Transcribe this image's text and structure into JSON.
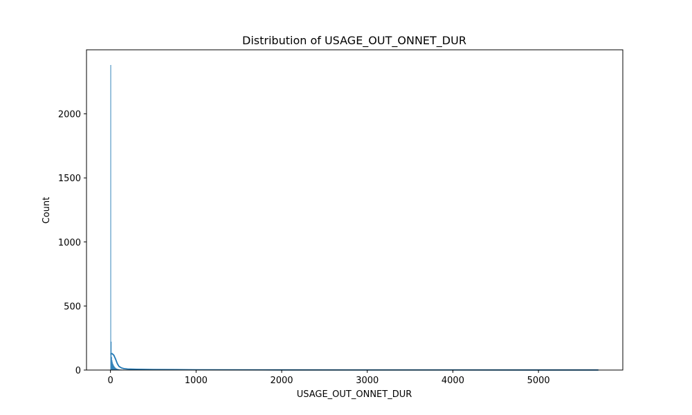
{
  "chart_data": {
    "type": "bar",
    "title": "Distribution of USAGE_OUT_ONNET_DUR",
    "xlabel": "USAGE_OUT_ONNET_DUR",
    "ylabel": "Count",
    "xlim": [
      -280,
      5985
    ],
    "ylim": [
      0,
      2500
    ],
    "x_ticks": [
      0,
      1000,
      2000,
      3000,
      4000,
      5000
    ],
    "y_ticks": [
      0,
      500,
      1000,
      1500,
      2000
    ],
    "bar_color": "#1f77b4",
    "kde_color": "#1f77b4",
    "histogram": {
      "bin_width": 5,
      "bins": [
        {
          "x0": 0,
          "count": 2380
        },
        {
          "x0": 5,
          "count": 220
        },
        {
          "x0": 10,
          "count": 100
        },
        {
          "x0": 15,
          "count": 75
        },
        {
          "x0": 20,
          "count": 60
        },
        {
          "x0": 25,
          "count": 48
        },
        {
          "x0": 30,
          "count": 40
        },
        {
          "x0": 35,
          "count": 33
        },
        {
          "x0": 40,
          "count": 28
        },
        {
          "x0": 45,
          "count": 23
        },
        {
          "x0": 50,
          "count": 19
        },
        {
          "x0": 55,
          "count": 16
        },
        {
          "x0": 60,
          "count": 13
        },
        {
          "x0": 65,
          "count": 11
        },
        {
          "x0": 70,
          "count": 9
        },
        {
          "x0": 75,
          "count": 8
        },
        {
          "x0": 80,
          "count": 7
        },
        {
          "x0": 85,
          "count": 6
        },
        {
          "x0": 90,
          "count": 5
        },
        {
          "x0": 95,
          "count": 5
        },
        {
          "x0": 100,
          "count": 4
        },
        {
          "x0": 110,
          "count": 3
        },
        {
          "x0": 120,
          "count": 3
        },
        {
          "x0": 130,
          "count": 2
        },
        {
          "x0": 150,
          "count": 2
        },
        {
          "x0": 180,
          "count": 1
        },
        {
          "x0": 220,
          "count": 1
        },
        {
          "x0": 300,
          "count": 1
        },
        {
          "x0": 5690,
          "count": 1
        }
      ]
    },
    "kde": {
      "x": [
        0,
        20,
        40,
        60,
        80,
        100,
        130,
        160,
        200,
        300,
        500,
        1000,
        2000,
        3000,
        4000,
        5000,
        5700
      ],
      "y": [
        125,
        128,
        115,
        85,
        50,
        28,
        16,
        11,
        8,
        6,
        4,
        2,
        1,
        0.8,
        0.6,
        0.4,
        0.3
      ]
    }
  }
}
